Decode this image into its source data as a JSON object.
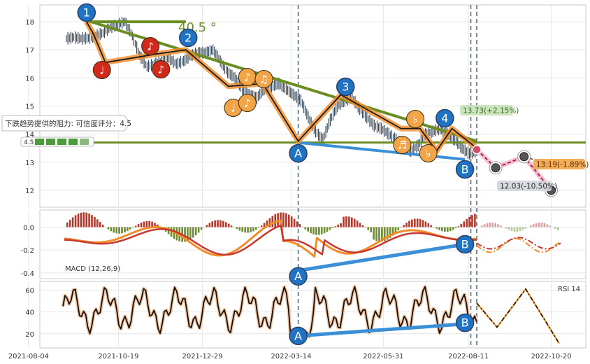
{
  "chart_data": {
    "type": "line",
    "panels": [
      "price",
      "macd",
      "rsi"
    ],
    "x_tick_labels": [
      "2021-08-04",
      "2021-10-19",
      "2021-12-29",
      "2022-03-14",
      "2022-05-31",
      "2022-08-11",
      "2022-10-20"
    ],
    "price": {
      "y_ticks": [
        12,
        13,
        14,
        15,
        16,
        17,
        18
      ],
      "ylim": [
        11.4,
        18.6
      ],
      "history_start": "2021-09-05",
      "history_end": "2022-08-18",
      "history_close": [
        17.4,
        17.45,
        17.4,
        17.42,
        17.5,
        17.6,
        17.8,
        17.9,
        18.0,
        17.5,
        16.8,
        16.4,
        16.5,
        16.6,
        16.7,
        16.5,
        16.6,
        16.8,
        16.9,
        16.9,
        17.0,
        16.6,
        16.2,
        16.0,
        15.6,
        15.4,
        15.3,
        15.6,
        15.7,
        15.8,
        15.6,
        15.4,
        15.2,
        14.6,
        14.1,
        13.8,
        14.5,
        15.0,
        15.2,
        15.3,
        14.9,
        14.6,
        14.3,
        14.2,
        14.0,
        13.8,
        13.6,
        13.4,
        13.6,
        14.0,
        14.1,
        14.2,
        14.0,
        13.8,
        13.5,
        13.3,
        13.4
      ],
      "trend_line_label": "40.5 °",
      "support_level": 13.7,
      "resistance_label": "下跌趋势提供的阻力: 可信度评分：4.5",
      "badge_value": "4.5",
      "forecast_labels": [
        "13.73(+2.15%)",
        "13.19(-1.89%)",
        "12.03(-10.50%)"
      ],
      "point_labels": [
        "1",
        "2",
        "3",
        "4",
        "A",
        "B"
      ]
    },
    "macd": {
      "label": "MACD (12,26,9)",
      "y_ticks": [
        0.0,
        -0.2,
        -0.4
      ],
      "ylim": [
        -0.45,
        0.15
      ]
    },
    "rsi": {
      "label": "RSI 14",
      "y_ticks": [
        20,
        40,
        60
      ],
      "ylim": [
        7,
        68
      ]
    },
    "colors": {
      "trend": "#6b8e23",
      "support": "#3a8fd6",
      "pattern": "#f28c28",
      "macd_fast": "#f28c28",
      "macd_slow": "#c8372d",
      "hist_pos": "#b03a2e",
      "hist_neg": "#6b8e23",
      "marker_blue": "#1f73c2",
      "marker_red": "#d02a1a",
      "marker_orange": "#f3a447"
    }
  }
}
